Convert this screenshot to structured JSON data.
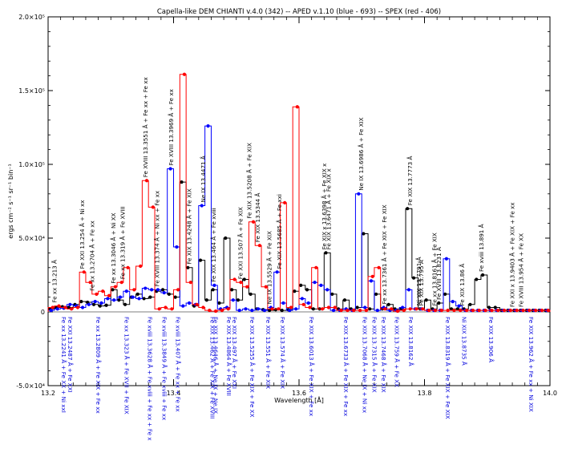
{
  "chart_data": {
    "type": "line",
    "title": "Capella-like DEM  CHIANTI v.4.0 (342) -- APED v.1.10 (blue - 693) -- SPEX (red - 406)",
    "xlabel": "Wavelength [Å]",
    "ylabel": "ergs cm⁻² s⁻¹ sr⁻¹ bin⁻¹",
    "xlim": [
      13.2,
      14.0
    ],
    "ylim": [
      -50000,
      200000
    ],
    "x_ticks": [
      13.2,
      13.4,
      13.6,
      13.8,
      14.0
    ],
    "x_tick_labels": [
      "13.2",
      "13.4",
      "13.6",
      "13.8",
      "14.0"
    ],
    "y_ticks": [
      -50000,
      0,
      50000,
      100000,
      150000,
      200000
    ],
    "y_tick_labels": [
      "-5.0×10⁴",
      "0",
      "5.0×10⁴",
      "1.0×10⁵",
      "1.5×10⁵",
      "2.0×10⁵"
    ],
    "bin_width": 0.01,
    "bin_starts": [
      13.2,
      13.21,
      13.22,
      13.23,
      13.24,
      13.25,
      13.26,
      13.27,
      13.28,
      13.29,
      13.3,
      13.31,
      13.32,
      13.33,
      13.34,
      13.35,
      13.36,
      13.37,
      13.38,
      13.39,
      13.4,
      13.41,
      13.42,
      13.43,
      13.44,
      13.45,
      13.46,
      13.47,
      13.48,
      13.49,
      13.5,
      13.51,
      13.52,
      13.53,
      13.54,
      13.55,
      13.56,
      13.57,
      13.58,
      13.59,
      13.6,
      13.61,
      13.62,
      13.63,
      13.64,
      13.65,
      13.66,
      13.67,
      13.68,
      13.69,
      13.7,
      13.71,
      13.72,
      13.73,
      13.74,
      13.75,
      13.76,
      13.77,
      13.78,
      13.79,
      13.8,
      13.81,
      13.82,
      13.83,
      13.84,
      13.85,
      13.86,
      13.87,
      13.88,
      13.89,
      13.9,
      13.91,
      13.92,
      13.93,
      13.94,
      13.95,
      13.96,
      13.97,
      13.98,
      13.99
    ],
    "series": [
      {
        "name": "CHIANTI",
        "color": "#000000",
        "values": [
          2000,
          3000,
          3500,
          3000,
          5000,
          7000,
          6500,
          5000,
          4000,
          4500,
          15000,
          8000,
          5000,
          10000,
          12000,
          9000,
          10000,
          14000,
          15000,
          12000,
          10000,
          88000,
          30000,
          4000,
          35000,
          8000,
          15000,
          6000,
          50000,
          15000,
          8000,
          22000,
          12000,
          2000,
          1500,
          1000,
          1500,
          1000,
          1500,
          14000,
          18000,
          15000,
          2000,
          2000,
          40000,
          12000,
          2000,
          8000,
          2000,
          3000,
          53000,
          2000,
          12000,
          2000,
          5000,
          2000,
          2000,
          70000,
          23000,
          2000,
          8000,
          2000,
          6000,
          12000,
          2000,
          2000,
          2000,
          5000,
          22000,
          25000,
          3000,
          3000,
          1000,
          1000,
          1000,
          1000,
          1000,
          1000,
          1000,
          1000
        ]
      },
      {
        "name": "APED",
        "color": "#0000ff",
        "values": [
          1000,
          2000,
          2500,
          5000,
          4000,
          3000,
          5000,
          7000,
          6000,
          9000,
          8000,
          10000,
          14000,
          10000,
          9000,
          16000,
          15000,
          15000,
          13000,
          97000,
          44000,
          4000,
          6000,
          5000,
          72000,
          126000,
          18000,
          2000,
          3000,
          8000,
          1000,
          2000,
          1000,
          2000,
          1000,
          3000,
          27000,
          6000,
          1000,
          2000,
          9000,
          6000,
          20000,
          18000,
          15000,
          1000,
          1000,
          2000,
          1000,
          80000,
          3000,
          21000,
          1000,
          3000,
          1000,
          1000,
          3000,
          15000,
          2000,
          2000,
          1000,
          1000,
          1000,
          36000,
          7000,
          4000,
          1000,
          1000,
          1000,
          1000,
          1000,
          1000,
          1000,
          1000,
          1000,
          1000,
          1000,
          1000,
          1000,
          1000
        ]
      },
      {
        "name": "SPEX",
        "color": "#ff0000",
        "values": [
          3000,
          4000,
          3000,
          2000,
          3000,
          27000,
          20000,
          12000,
          14000,
          11000,
          17000,
          20000,
          30000,
          15000,
          31000,
          89000,
          71000,
          2000,
          3000,
          2000,
          15000,
          161000,
          20000,
          5000,
          3000,
          1000,
          500,
          1000,
          2000,
          22000,
          20000,
          17000,
          61000,
          45000,
          17000,
          2000,
          2000,
          74000,
          3000,
          139000,
          5000,
          3000,
          30000,
          2000,
          3000,
          3000,
          1000,
          1000,
          1000,
          1000,
          1000,
          24000,
          30000,
          2000,
          2000,
          500,
          1000,
          2000,
          2000,
          2000,
          1000,
          1000,
          1000,
          1000,
          1000,
          1000,
          1000,
          1000,
          1000,
          1000,
          1000,
          1000,
          1000,
          1000,
          1000,
          1000,
          1000,
          1000,
          1000,
          1000
        ]
      }
    ],
    "annotations_top": [
      {
        "x": 13.21,
        "text": "Fe xx 13.213 Å"
      },
      {
        "x": 13.254,
        "text": "Fe XXI 13.254 Å + Ni xx"
      },
      {
        "x": 13.27,
        "text": "Fe xx 13.2704 Å + Fe xx"
      },
      {
        "x": 13.304,
        "text": "Fe xx 13.3046 Å + Ni XX"
      },
      {
        "x": 13.319,
        "text": "Fe xx 13.319 Å + Fe XVIII"
      },
      {
        "x": 13.355,
        "text": "Fe XVIII 13.3551 Å + Fe xx + Fe xx"
      },
      {
        "x": 13.374,
        "text": "Fe XVIII 13.374 Å + Ni xx + Fe xx"
      },
      {
        "x": 13.396,
        "text": "Fe XVIII 13.3969 Å + Fe xx"
      },
      {
        "x": 13.425,
        "text": "Fe XIX 13.4248 Å + Fe XIX"
      },
      {
        "x": 13.447,
        "text": "Ne IX 13.4471 Å"
      },
      {
        "x": 13.464,
        "text": "Fe XIX 13.464 Å + Fe xviii"
      },
      {
        "x": 13.507,
        "text": "Fe XXI 13.507 Å + Fe XIX"
      },
      {
        "x": 13.521,
        "text": "Fe XIX 13.5208 Å + Fe XIX"
      },
      {
        "x": 13.534,
        "text": "Fe XIX 13.5344 Å"
      },
      {
        "x": 13.553,
        "text": "Ne IX 13.5529 Å + Fe XIX"
      },
      {
        "x": 13.569,
        "text": "Fe XIX 13.5685 Å + Fe xxi"
      },
      {
        "x": 13.64,
        "text": "Fe XIX x 13.6398 Å + Fe XIX x"
      },
      {
        "x": 13.647,
        "text": "Fe XIX 13.6471 Å + Fe XIX x"
      },
      {
        "x": 13.699,
        "text": "Ne IX 13.6986 Å + Fe XIX"
      },
      {
        "x": 13.736,
        "text": "Fe xx 13.7361 Å + Fe XIX + Fe XIX"
      },
      {
        "x": 13.777,
        "text": "Fe XIX 13.7773 Å"
      },
      {
        "x": 13.791,
        "text": "Ni XIX 13.7791 Å"
      },
      {
        "x": 13.795,
        "text": "Fe XIX 13.795 Å"
      },
      {
        "x": 13.816,
        "text": "Fe xx 13.8161 Å + Fe XIX"
      },
      {
        "x": 13.823,
        "text": "Fe XVIII 13.8231 Å"
      },
      {
        "x": 13.86,
        "text": "Fe XIX 13.86 Å"
      },
      {
        "x": 13.891,
        "text": "Fe xviii 13.891 Å"
      },
      {
        "x": 13.94,
        "text": "Fe XXI x 13.9403 Å + Fe XIX + Fe xx"
      },
      {
        "x": 13.954,
        "text": "Fe XVIII 13.954 Å + Fe XX"
      }
    ],
    "annotations_bottom": [
      {
        "x": 13.225,
        "text": "Fe xx 13.2241 Å + Fe XX + Ni xxI"
      },
      {
        "x": 13.235,
        "text": "Fe XXI 13.2487 Å + Fe XXI"
      },
      {
        "x": 13.28,
        "text": "Fe xx 13.2809 Å + Fe XIX + Fe xx"
      },
      {
        "x": 13.325,
        "text": "Fe xx 13.323 Å + Fe XVII + Fe XIX"
      },
      {
        "x": 13.362,
        "text": "Fe xviii 13.3628 Å + Fe xviii + Fe xx + Fe x"
      },
      {
        "x": 13.385,
        "text": "Fe xviii 13.3849 Å + Fe xviii + Fe xx"
      },
      {
        "x": 13.407,
        "text": "Fe xviii 13.407 Å + Fe xx + Fe xx"
      },
      {
        "x": 13.462,
        "text": "Fe XIX 13.462 Å + Fe XIX + Fe XVIII"
      },
      {
        "x": 13.467,
        "text": "Fe XIX 13.4646 Å + Ne IX + Ne IX"
      },
      {
        "x": 13.488,
        "text": "Fe XIX 13.4864 Å + Fe XVIII"
      },
      {
        "x": 13.497,
        "text": "Fe XIX 13.497 Å + Fe XXI"
      },
      {
        "x": 13.525,
        "text": "Fe XIX 13.5255 Å + Fe XIX + Fe XX"
      },
      {
        "x": 13.551,
        "text": "Fe XIX 13.551 Å + Fe XIX"
      },
      {
        "x": 13.574,
        "text": "Fe XIX 13.574 Å + Fe XIX"
      },
      {
        "x": 13.62,
        "text": "Fe XIX 13.6013 Å + Fe XIX + Fe xx"
      },
      {
        "x": 13.675,
        "text": "Fe XIX 13.6733 Å + Fe XIX + Fe xx"
      },
      {
        "x": 13.705,
        "text": "Fe XIX 13.7068 Å + Ne IX + Ni xx"
      },
      {
        "x": 13.72,
        "text": "Fe XIX 13.7315 Å + Fe XIX"
      },
      {
        "x": 13.735,
        "text": "Fe XIX 13.7468 Å + Fe XIX"
      },
      {
        "x": 13.756,
        "text": "Fe XIX 13.759 Å + Fe XX"
      },
      {
        "x": 13.778,
        "text": "Fe XIX 13.8162 Å"
      },
      {
        "x": 13.837,
        "text": "Fe XIX 13.8319 Å + Fe XIX + Fe XIX"
      },
      {
        "x": 13.863,
        "text": "Ni XIX 13.8735 Å"
      },
      {
        "x": 13.906,
        "text": "Fe XIX 13.906 Å"
      },
      {
        "x": 13.97,
        "text": "Fe XIX 13.962 Å + Fe xx + Ni XIX"
      }
    ]
  }
}
